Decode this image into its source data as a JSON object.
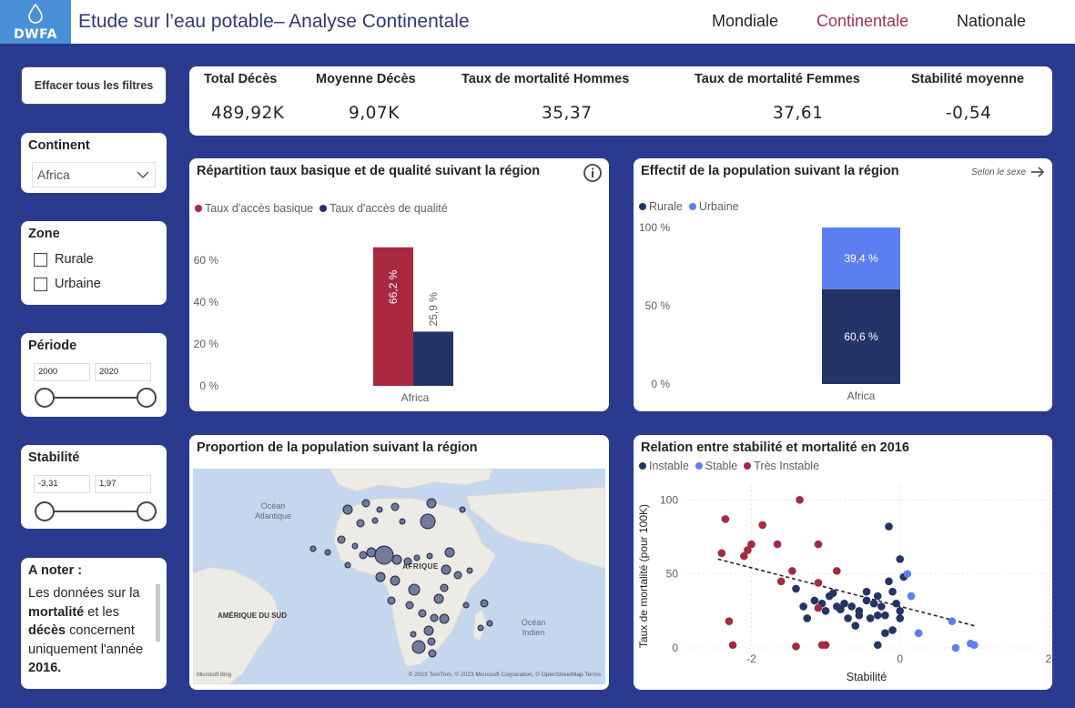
{
  "header": {
    "logo_text": "DWFA",
    "title": "Etude sur l’eau potable– Analyse Continentale",
    "nav": [
      {
        "label": "Mondiale",
        "active": false
      },
      {
        "label": "Continentale",
        "active": true
      },
      {
        "label": "Nationale",
        "active": false
      }
    ]
  },
  "filters": {
    "clear_label": "Effacer tous les filtres",
    "continent": {
      "title": "Continent",
      "value": "Africa"
    },
    "zone": {
      "title": "Zone",
      "options": [
        "Rurale",
        "Urbaine"
      ]
    },
    "periode": {
      "title": "Période",
      "min": "2000",
      "max": "2020"
    },
    "stabilite": {
      "title": "Stabilité",
      "min": "-3,31",
      "max": "1,97"
    }
  },
  "note": {
    "title": "A noter :",
    "body_1": "Les données sur la ",
    "body_bold_1": "mortalité",
    "body_2": " et les ",
    "body_bold_2": "décès",
    "body_3": " concernent uniquement l'année ",
    "body_bold_3": "2016."
  },
  "kpis": [
    {
      "label": "Total Décès",
      "value": "489,92K"
    },
    {
      "label": "Moyenne Décès",
      "value": "9,07K"
    },
    {
      "label": "Taux de mortalité Hommes",
      "value": "35,37"
    },
    {
      "label": "Taux de mortalité Femmes",
      "value": "37,61"
    },
    {
      "label": "Stabilité moyenne",
      "value": "-0,54"
    }
  ],
  "colors": {
    "red": "#a8293f",
    "navy": "#243466",
    "blue": "#5b7ff0",
    "header_bg": "#2a3a8f"
  },
  "map_card": {
    "title": "Proportion de la population suivant la région",
    "labels": {
      "atlantic": "Océan\nAtlantique",
      "africa": "AFRIQUE",
      "south_america": "AMÉRIQUE DU SUD",
      "indian": "Océan\nIndien"
    },
    "copyright": "© 2023 TomTom, © 2023 Microsoft Corporation, © OpenStreetMap  Terms",
    "bing": "Microsoft Bing"
  },
  "chart_data": [
    {
      "type": "bar",
      "title": "Répartition taux basique et de qualité suivant la région",
      "categories": [
        "Africa"
      ],
      "series": [
        {
          "name": "Taux d'accès basique",
          "values": [
            66.2
          ],
          "label": "66,2 %"
        },
        {
          "name": "Taux d'accès de qualité",
          "values": [
            25.9
          ],
          "label": "25,9 %"
        }
      ],
      "yticks": [
        "0 %",
        "20 %",
        "40 %",
        "60 %"
      ],
      "ylim": [
        0,
        75
      ]
    },
    {
      "type": "bar",
      "stacked": true,
      "title": "Effectif de la population suivant la région",
      "subtitle": "Selon le sexe",
      "categories": [
        "Africa"
      ],
      "series": [
        {
          "name": "Rurale",
          "values": [
            60.6
          ],
          "label": "60,6 %"
        },
        {
          "name": "Urbaine",
          "values": [
            39.4
          ],
          "label": "39,4 %"
        }
      ],
      "yticks": [
        "0 %",
        "50 %",
        "100 %"
      ],
      "ylim": [
        0,
        100
      ]
    },
    {
      "type": "scatter",
      "title": "Relation entre stabilité et mortalité en 2016",
      "xlabel": "Stabilité",
      "ylabel": "Taux de mortalité (pour 100K)",
      "xlim": [
        -2.9,
        2
      ],
      "ylim": [
        0,
        110
      ],
      "xticks": [
        -2,
        0,
        2
      ],
      "yticks": [
        0,
        50,
        100
      ],
      "series": [
        {
          "name": "Instable",
          "points": [
            [
              -1.25,
              20
            ],
            [
              -1.15,
              32
            ],
            [
              -1.05,
              30
            ],
            [
              -0.95,
              35
            ],
            [
              -0.85,
              28
            ],
            [
              -0.75,
              30
            ],
            [
              -0.65,
              28
            ],
            [
              -0.55,
              25
            ],
            [
              -0.45,
              38
            ],
            [
              -0.45,
              32
            ],
            [
              -0.35,
              30
            ],
            [
              -0.3,
              35
            ],
            [
              -0.25,
              28
            ],
            [
              -0.2,
              22
            ],
            [
              -0.15,
              45
            ],
            [
              -0.1,
              38
            ],
            [
              -0.05,
              30
            ],
            [
              0.0,
              25
            ],
            [
              0.0,
              20
            ],
            [
              -0.1,
              12
            ],
            [
              -0.3,
              2
            ],
            [
              -0.6,
              15
            ],
            [
              -0.7,
              20
            ],
            [
              0.05,
              48
            ],
            [
              0.0,
              60
            ],
            [
              -0.15,
              82
            ],
            [
              -0.3,
              22
            ],
            [
              -0.55,
              22
            ],
            [
              -1.3,
              28
            ],
            [
              -1.0,
              25
            ],
            [
              -0.4,
              20
            ],
            [
              -0.2,
              10
            ],
            [
              -0.9,
              37
            ],
            [
              -0.8,
              26
            ],
            [
              -1.4,
              40
            ]
          ]
        },
        {
          "name": "Stable",
          "points": [
            [
              0.1,
              50
            ],
            [
              0.15,
              35
            ],
            [
              0.25,
              10
            ],
            [
              0.7,
              18
            ],
            [
              0.75,
              0
            ],
            [
              0.95,
              3
            ],
            [
              1.0,
              2
            ]
          ]
        },
        {
          "name": "Très Instable",
          "points": [
            [
              -2.4,
              64
            ],
            [
              -2.35,
              87
            ],
            [
              -2.3,
              18
            ],
            [
              -2.25,
              2
            ],
            [
              -2.1,
              62
            ],
            [
              -2.05,
              66
            ],
            [
              -2.0,
              70
            ],
            [
              -1.85,
              83
            ],
            [
              -1.65,
              70
            ],
            [
              -1.6,
              45
            ],
            [
              -1.45,
              52
            ],
            [
              -1.35,
              100
            ],
            [
              -1.1,
              70
            ],
            [
              -1.1,
              44
            ],
            [
              -1.1,
              27
            ],
            [
              -1.05,
              2
            ],
            [
              -1.0,
              2
            ],
            [
              -1.4,
              1
            ],
            [
              -0.85,
              52
            ]
          ]
        }
      ]
    }
  ]
}
